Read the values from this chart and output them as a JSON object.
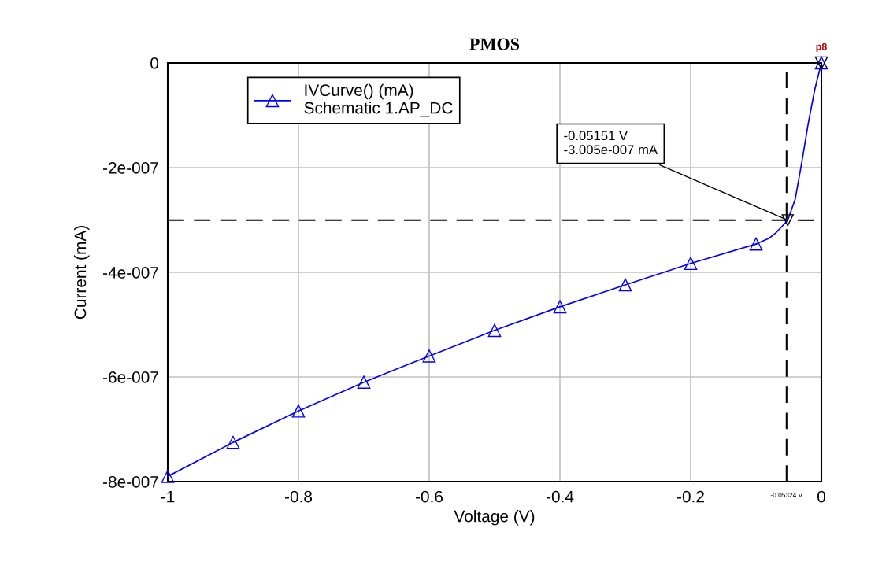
{
  "chart_data": {
    "type": "line",
    "title": "PMOS",
    "xlabel": "Voltage (V)",
    "ylabel": "Current (mA)",
    "x": [
      -1,
      -0.9,
      -0.8,
      -0.7,
      -0.6,
      -0.5,
      -0.4,
      -0.3,
      -0.2,
      -0.1,
      -0.05,
      0
    ],
    "series": [
      {
        "name": "IVCurve() (mA)\nSchematic 1.AP_DC",
        "color": "#0000ff",
        "marker": "triangle",
        "values": [
          -7.9e-07,
          -7.25e-07,
          -6.65e-07,
          -6.1e-07,
          -5.6e-07,
          -5.11e-07,
          -4.66e-07,
          -4.24e-07,
          -3.83e-07,
          -3.46e-07,
          null,
          0
        ]
      },
      {
        "color": "#0000ff",
        "marker": "none",
        "x": [
          -0.1,
          -0.08,
          -0.07,
          -0.06,
          -0.05151,
          -0.04,
          -0.03,
          -0.02,
          -0.01,
          0
        ],
        "values": [
          -3.46e-07,
          -3.35e-07,
          -3.25e-07,
          -3.12e-07,
          -3.005e-07,
          -2.6e-07,
          -1.9e-07,
          -1.15e-07,
          -5e-08,
          0
        ]
      }
    ],
    "xlim": [
      -1,
      0
    ],
    "xticks": [
      -1,
      -0.8,
      -0.6,
      -0.4,
      -0.2,
      0
    ],
    "ylim": [
      -8e-07,
      0
    ],
    "yticks": [
      {
        "value": -8e-07,
        "label": "-8e-007"
      },
      {
        "value": -6e-07,
        "label": "-6e-007"
      },
      {
        "value": -4e-07,
        "label": "-4e-007"
      },
      {
        "value": -2e-07,
        "label": "-2e-007"
      },
      0
    ],
    "grid": true,
    "legend": "top left",
    "line_style": "solid",
    "ref_lines": [
      {
        "axis": "y",
        "value": -3.005e-07,
        "color": "#000000",
        "line_style": "dashed"
      },
      {
        "axis": "x",
        "value": -0.05324,
        "label": "-0.05324 V",
        "color": "#000000",
        "line_style": "dashed"
      }
    ],
    "annotations": [
      {
        "text": "-0.05151 V\n-3.005e-007 mA",
        "x": -0.05151,
        "y": -3.005e-07
      },
      {
        "text": "p8",
        "x": 0,
        "y": 0
      }
    ]
  }
}
